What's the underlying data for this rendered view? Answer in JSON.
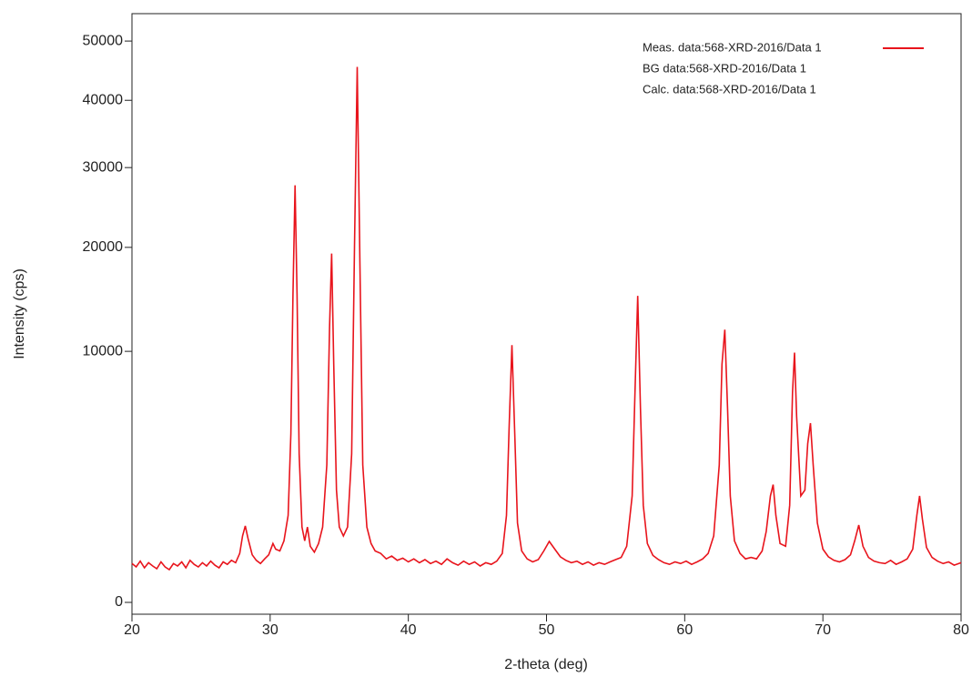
{
  "chart_data": {
    "type": "line",
    "y_scale": "sqrt",
    "x_label": "2-theta (deg)",
    "y_label": "Intensity (cps)",
    "xlim": [
      20,
      80
    ],
    "xticks": [
      20,
      30,
      40,
      50,
      60,
      70,
      80
    ],
    "ylim": [
      0,
      55000
    ],
    "yticks": [
      0,
      10000,
      20000,
      30000,
      40000,
      50000
    ],
    "legend_texts": [
      "BG data:568-XRD-2016/Data 1",
      "Calc. data:568-XRD-2016/Data 1"
    ],
    "x": [
      20,
      20.3,
      20.6,
      20.9,
      21.2,
      21.5,
      21.8,
      22.1,
      22.4,
      22.7,
      23,
      23.3,
      23.6,
      23.9,
      24.2,
      24.5,
      24.8,
      25.1,
      25.4,
      25.7,
      26,
      26.3,
      26.6,
      26.9,
      27.2,
      27.5,
      27.8,
      28.0,
      28.2,
      28.4,
      28.7,
      29,
      29.3,
      29.6,
      29.9,
      30.2,
      30.4,
      30.7,
      31.0,
      31.3,
      31.5,
      31.65,
      31.8,
      31.95,
      32.1,
      32.3,
      32.5,
      32.7,
      32.9,
      33.2,
      33.5,
      33.8,
      34.1,
      34.3,
      34.45,
      34.6,
      34.8,
      35.0,
      35.3,
      35.6,
      35.9,
      36.1,
      36.3,
      36.5,
      36.7,
      37.0,
      37.3,
      37.6,
      38,
      38.4,
      38.8,
      39.2,
      39.6,
      40,
      40.4,
      40.8,
      41.2,
      41.6,
      42,
      42.4,
      42.8,
      43.2,
      43.6,
      44,
      44.4,
      44.8,
      45.2,
      45.6,
      46,
      46.4,
      46.8,
      47.1,
      47.3,
      47.5,
      47.7,
      47.9,
      48.2,
      48.6,
      49,
      49.4,
      49.8,
      50.2,
      50.6,
      51,
      51.4,
      51.8,
      52.2,
      52.6,
      53,
      53.4,
      53.8,
      54.2,
      54.6,
      55,
      55.4,
      55.8,
      56.2,
      56.4,
      56.6,
      56.8,
      57.0,
      57.3,
      57.7,
      58.1,
      58.5,
      58.9,
      59.3,
      59.7,
      60.1,
      60.5,
      60.9,
      61.3,
      61.7,
      62.1,
      62.5,
      62.7,
      62.9,
      63.1,
      63.3,
      63.6,
      64,
      64.4,
      64.8,
      65.2,
      65.6,
      65.9,
      66.2,
      66.4,
      66.6,
      66.9,
      67.3,
      67.6,
      67.8,
      67.95,
      68.1,
      68.4,
      68.7,
      68.9,
      69.1,
      69.3,
      69.6,
      70,
      70.4,
      70.8,
      71.2,
      71.6,
      72,
      72.3,
      72.6,
      72.9,
      73.3,
      73.7,
      74.1,
      74.5,
      74.9,
      75.3,
      75.7,
      76.1,
      76.5,
      76.8,
      77.0,
      77.2,
      77.5,
      77.9,
      78.3,
      78.7,
      79.1,
      79.5,
      80
    ],
    "series": [
      {
        "name": "Meas. data:568-XRD-2016/Data 1",
        "color": "#e8141c",
        "values": [
          240,
          200,
          270,
          190,
          250,
          210,
          180,
          260,
          200,
          170,
          240,
          210,
          260,
          190,
          280,
          230,
          200,
          250,
          210,
          270,
          220,
          190,
          260,
          230,
          280,
          250,
          380,
          700,
          930,
          650,
          360,
          280,
          240,
          300,
          360,
          550,
          450,
          420,
          600,
          1200,
          4500,
          15000,
          27600,
          15000,
          3500,
          900,
          600,
          900,
          500,
          400,
          550,
          900,
          3000,
          12000,
          19300,
          9000,
          2000,
          900,
          700,
          900,
          3500,
          20000,
          45500,
          18000,
          3000,
          900,
          550,
          420,
          380,
          300,
          340,
          280,
          310,
          260,
          300,
          250,
          290,
          240,
          270,
          230,
          300,
          250,
          220,
          270,
          230,
          260,
          210,
          250,
          230,
          270,
          380,
          1200,
          5000,
          10500,
          4500,
          1000,
          420,
          300,
          260,
          290,
          420,
          590,
          450,
          330,
          280,
          250,
          270,
          230,
          260,
          220,
          250,
          230,
          260,
          290,
          320,
          500,
          1800,
          7000,
          14900,
          6000,
          1500,
          550,
          350,
          290,
          250,
          230,
          260,
          240,
          270,
          230,
          260,
          300,
          380,
          700,
          3000,
          9000,
          11800,
          6000,
          1800,
          600,
          380,
          300,
          320,
          300,
          420,
          800,
          1800,
          2200,
          1200,
          550,
          500,
          1500,
          7000,
          9900,
          5500,
          1800,
          2000,
          4000,
          5100,
          3000,
          1000,
          450,
          330,
          280,
          260,
          290,
          360,
          600,
          950,
          500,
          320,
          270,
          250,
          240,
          280,
          230,
          260,
          300,
          450,
          1200,
          1800,
          1100,
          480,
          320,
          270,
          240,
          260,
          220,
          250
        ]
      }
    ]
  }
}
